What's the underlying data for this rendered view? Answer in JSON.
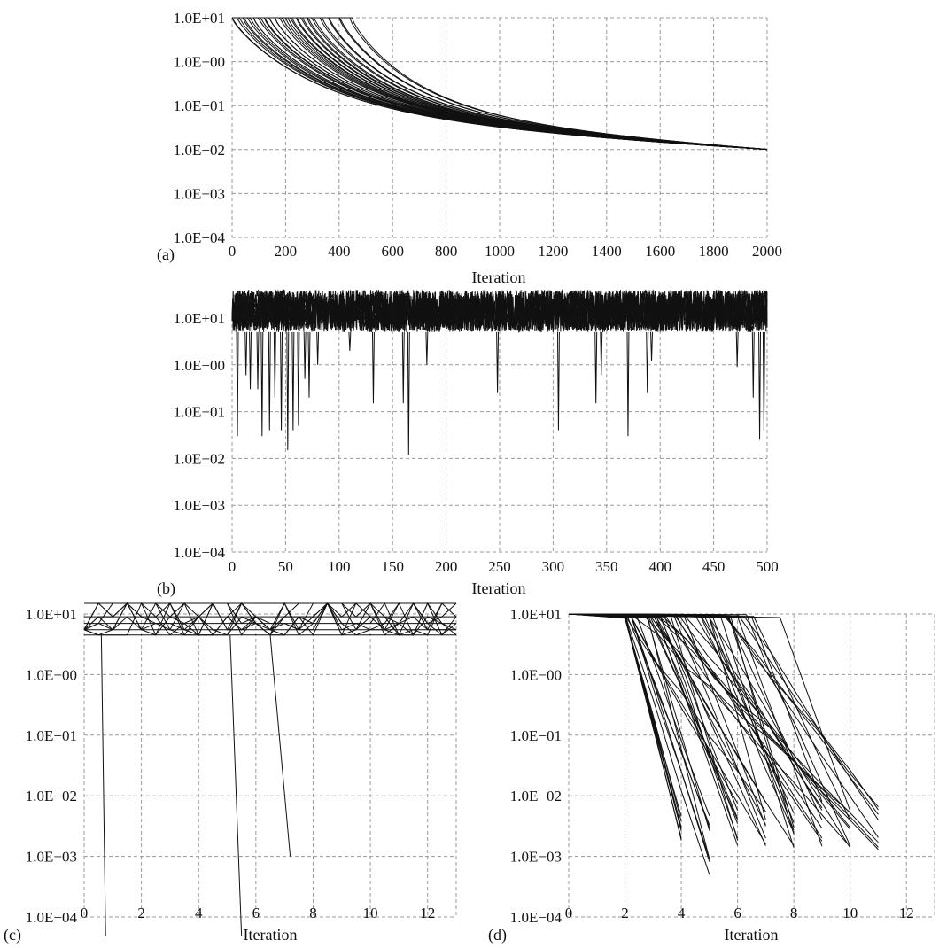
{
  "chart_data": [
    {
      "panel_label": "(a)",
      "type": "line",
      "xlabel": "Iteration",
      "ylabel": "",
      "yscale": "log",
      "xlim": [
        0,
        2000
      ],
      "ylim_exponent": [
        -4,
        1
      ],
      "x_ticks": [
        0,
        200,
        400,
        600,
        800,
        1000,
        1200,
        1400,
        1600,
        1800,
        2000
      ],
      "x_tick_labels": [
        "0",
        "200",
        "400",
        "600",
        "800",
        "1000",
        "1200",
        "1400",
        "1600",
        "1800",
        "2000"
      ],
      "y_tick_labels": [
        "1.0E+01",
        "1.0E−00",
        "1.0E−01",
        "1.0E−02",
        "1.0E−03",
        "1.0E−04"
      ],
      "grid": true,
      "description_of_series": "about 40 curves starting near 10 that plateau until a knee between iteration 0 and 450, then decay smoothly to ~0.01 at iteration 2000",
      "series_summary": {
        "start_value": 10,
        "plateau_end_iterations": [
          0,
          20,
          40,
          60,
          80,
          100,
          120,
          140,
          160,
          180,
          200,
          220,
          240,
          260,
          280,
          300,
          330,
          360,
          400,
          440
        ],
        "end_value_at_2000": 0.01
      }
    },
    {
      "panel_label": "(b)",
      "type": "line",
      "xlabel": "Iteration",
      "ylabel": "",
      "yscale": "log",
      "xlim": [
        0,
        500
      ],
      "ylim_exponent": [
        -4,
        1
      ],
      "x_ticks": [
        0,
        50,
        100,
        150,
        200,
        250,
        300,
        350,
        400,
        450,
        500
      ],
      "x_tick_labels": [
        "0",
        "50",
        "100",
        "150",
        "200",
        "250",
        "300",
        "350",
        "400",
        "450",
        "500"
      ],
      "y_tick_labels": [
        "1.0E+01",
        "1.0E−00",
        "1.0E−01",
        "1.0E−02",
        "1.0E−03",
        "1.0E−04"
      ],
      "grid": true,
      "description_of_series": "dense noisy band between ~5 and ~40 across all iterations with occasional downward spikes",
      "band": {
        "low": 5,
        "high": 40
      },
      "spikes": [
        {
          "x": 5,
          "y": 0.03
        },
        {
          "x": 13,
          "y": 0.6
        },
        {
          "x": 17,
          "y": 0.3
        },
        {
          "x": 24,
          "y": 0.3
        },
        {
          "x": 28,
          "y": 0.03
        },
        {
          "x": 35,
          "y": 0.04
        },
        {
          "x": 40,
          "y": 0.2
        },
        {
          "x": 46,
          "y": 0.04
        },
        {
          "x": 52,
          "y": 0.015
        },
        {
          "x": 57,
          "y": 0.04
        },
        {
          "x": 62,
          "y": 0.05
        },
        {
          "x": 68,
          "y": 0.5
        },
        {
          "x": 72,
          "y": 0.2
        },
        {
          "x": 80,
          "y": 1.0
        },
        {
          "x": 110,
          "y": 2.0
        },
        {
          "x": 132,
          "y": 0.15
        },
        {
          "x": 160,
          "y": 0.15
        },
        {
          "x": 165,
          "y": 0.012
        },
        {
          "x": 182,
          "y": 1.0
        },
        {
          "x": 248,
          "y": 0.25
        },
        {
          "x": 305,
          "y": 0.04
        },
        {
          "x": 340,
          "y": 0.15
        },
        {
          "x": 345,
          "y": 0.6
        },
        {
          "x": 370,
          "y": 0.03
        },
        {
          "x": 388,
          "y": 0.25
        },
        {
          "x": 392,
          "y": 1.2
        },
        {
          "x": 472,
          "y": 0.9
        },
        {
          "x": 487,
          "y": 0.2
        },
        {
          "x": 493,
          "y": 0.025
        },
        {
          "x": 497,
          "y": 0.04
        }
      ]
    },
    {
      "panel_label": "(c)",
      "type": "line",
      "xlabel": "Iteration",
      "ylabel": "",
      "yscale": "log",
      "xlim": [
        0,
        13
      ],
      "ylim_exponent": [
        -4,
        1
      ],
      "x_ticks": [
        0,
        2,
        4,
        6,
        8,
        10,
        12
      ],
      "x_tick_labels": [
        "0",
        "2",
        "4",
        "6",
        "8",
        "10",
        "12"
      ],
      "y_tick_labels": [
        "1.0E+01",
        "1.0E−00",
        "1.0E−01",
        "1.0E−02",
        "1.0E−03",
        "1.0E−04"
      ],
      "grid": true,
      "description_of_series": "cross-hatched band between ~4 and ~15 for all iterations, three curves drop steeply",
      "band": {
        "low": 4.5,
        "high": 15
      },
      "drops": [
        {
          "x_start": 0.6,
          "y_start": 4.5,
          "x_end": 0.75,
          "y_end": 1e-05
        },
        {
          "x_start": 5.1,
          "y_start": 4.5,
          "x_end": 5.5,
          "y_end": 1e-05
        },
        {
          "x_start": 6.5,
          "y_start": 4.5,
          "x_end": 7.2,
          "y_end": 0.001
        }
      ]
    },
    {
      "panel_label": "(d)",
      "type": "line",
      "xlabel": "Iteration",
      "ylabel": "",
      "yscale": "log",
      "xlim": [
        0,
        13
      ],
      "ylim_exponent": [
        -4,
        1
      ],
      "x_ticks": [
        0,
        2,
        4,
        6,
        8,
        10,
        12
      ],
      "x_tick_labels": [
        "0",
        "2",
        "4",
        "6",
        "8",
        "10",
        "12"
      ],
      "y_tick_labels": [
        "1.0E+01",
        "1.0E−00",
        "1.0E−01",
        "1.0E−02",
        "1.0E−03",
        "1.0E−04"
      ],
      "grid": true,
      "description_of_series": "curves start near 10, stay flat until iteration 2 or later, then decay to end values between ~0.0005 and ~0.005 at iterations 4 through 11",
      "start_value": 10,
      "end_points": [
        {
          "x": 4,
          "y": 0.003
        },
        {
          "x": 4,
          "y": 0.002
        },
        {
          "x": 5,
          "y": 0.0005
        },
        {
          "x": 5,
          "y": 0.003
        },
        {
          "x": 6,
          "y": 0.002
        },
        {
          "x": 6,
          "y": 0.004
        },
        {
          "x": 7,
          "y": 0.002
        },
        {
          "x": 7,
          "y": 0.004
        },
        {
          "x": 8,
          "y": 0.0015
        },
        {
          "x": 8,
          "y": 0.003
        },
        {
          "x": 9,
          "y": 0.002
        },
        {
          "x": 9,
          "y": 0.004
        },
        {
          "x": 10,
          "y": 0.0015
        },
        {
          "x": 10,
          "y": 0.003
        },
        {
          "x": 11,
          "y": 0.0017
        },
        {
          "x": 11,
          "y": 0.004
        }
      ]
    }
  ]
}
